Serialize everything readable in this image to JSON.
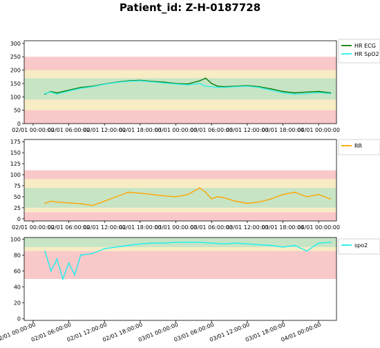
{
  "title": "Patient_id: Z-H-0187728",
  "colors": {
    "band_red": "#f9c8c8",
    "band_yellow": "#f7ecc4",
    "band_green": "#c7e4c4",
    "hr_ecg": "#0a7d0a",
    "hr_spo2": "#2ef2e8",
    "rr": "#ffa500",
    "spo2": "#19f0f0"
  },
  "chart_data": [
    {
      "type": "line",
      "xlim": [
        "02/01 00:00:00",
        "04/01 03:00:00"
      ],
      "ylim": [
        0,
        310
      ],
      "yticks": [
        0,
        50,
        100,
        150,
        200,
        250,
        300
      ],
      "xtick_labels": [
        "02/01 00:00:00",
        "02/01 06:00:00",
        "02/01 12:00:00",
        "02/01 18:00:00",
        "03/01 00:00:00",
        "03/01 06:00:00",
        "03/01 12:00:00",
        "03/01 18:00:00",
        "04/01 00:00:00"
      ],
      "bands": [
        {
          "from": 0,
          "to": 50,
          "level": "red"
        },
        {
          "from": 50,
          "to": 70,
          "level": "yellow"
        },
        {
          "from": 70,
          "to": 90,
          "level": "yellow"
        },
        {
          "from": 90,
          "to": 170,
          "level": "green"
        },
        {
          "from": 170,
          "to": 200,
          "level": "yellow"
        },
        {
          "from": 200,
          "to": 250,
          "level": "red"
        }
      ],
      "legend_position": "outside-right",
      "series": [
        {
          "name": "HR ECG",
          "color": "#0a7d0a",
          "x_hours": [
            2,
            3,
            4,
            6,
            8,
            10,
            12,
            14,
            16,
            18,
            20,
            22,
            24,
            26,
            28,
            29,
            30,
            31,
            32,
            34,
            36,
            38,
            40,
            42,
            44,
            46,
            48,
            50
          ],
          "y": [
            110,
            120,
            115,
            125,
            135,
            140,
            148,
            155,
            160,
            162,
            158,
            155,
            150,
            148,
            160,
            170,
            150,
            140,
            138,
            140,
            142,
            138,
            130,
            120,
            115,
            118,
            120,
            115
          ]
        },
        {
          "name": "HR SpO2",
          "color": "#2ef2e8",
          "x_hours": [
            2,
            3,
            4,
            6,
            8,
            10,
            12,
            14,
            16,
            18,
            20,
            22,
            24,
            26,
            28,
            29,
            30,
            31,
            32,
            34,
            36,
            38,
            40,
            42,
            44,
            46,
            48,
            50
          ],
          "y": [
            112,
            118,
            110,
            122,
            132,
            138,
            147,
            154,
            158,
            160,
            156,
            152,
            148,
            145,
            150,
            140,
            138,
            136,
            135,
            138,
            140,
            135,
            125,
            115,
            110,
            112,
            116,
            112
          ]
        }
      ]
    },
    {
      "type": "line",
      "xlim": [
        "02/01 00:00:00",
        "04/01 03:00:00"
      ],
      "ylim": [
        -5,
        180
      ],
      "yticks": [
        0,
        25,
        50,
        75,
        100,
        125,
        150,
        175
      ],
      "xtick_labels": [
        "02/01 00:00:00",
        "02/01 06:00:00",
        "02/01 12:00:00",
        "02/01 18:00:00",
        "03/01 00:00:00",
        "03/01 06:00:00",
        "03/01 12:00:00",
        "03/01 18:00:00",
        "04/01 00:00:00"
      ],
      "bands": [
        {
          "from": -5,
          "to": 15,
          "level": "red"
        },
        {
          "from": 15,
          "to": 25,
          "level": "yellow"
        },
        {
          "from": 25,
          "to": 70,
          "level": "green"
        },
        {
          "from": 70,
          "to": 90,
          "level": "yellow"
        },
        {
          "from": 90,
          "to": 110,
          "level": "red"
        }
      ],
      "legend_position": "outside-right",
      "series": [
        {
          "name": "RR",
          "color": "#ffa500",
          "x_hours": [
            2,
            3,
            4,
            6,
            8,
            10,
            12,
            14,
            16,
            18,
            20,
            22,
            24,
            26,
            28,
            29,
            30,
            31,
            32,
            34,
            36,
            38,
            40,
            42,
            44,
            46,
            48,
            50
          ],
          "y": [
            35,
            40,
            38,
            36,
            34,
            30,
            40,
            50,
            60,
            58,
            55,
            52,
            50,
            55,
            70,
            60,
            45,
            50,
            48,
            40,
            35,
            38,
            45,
            55,
            60,
            50,
            55,
            45
          ]
        }
      ]
    },
    {
      "type": "line",
      "xlim": [
        "02/01 00:00:00",
        "04/01 03:00:00"
      ],
      "ylim": [
        -2,
        102
      ],
      "yticks": [
        0,
        20,
        40,
        60,
        80,
        100
      ],
      "xtick_labels": [
        "02/01 00:00:00",
        "02/01 06:00:00",
        "02/01 12:00:00",
        "02/01 18:00:00",
        "03/01 00:00:00",
        "03/01 06:00:00",
        "03/01 12:00:00",
        "03/01 18:00:00",
        "04/01 00:00:00"
      ],
      "bands": [
        {
          "from": 50,
          "to": 85,
          "level": "red"
        },
        {
          "from": 85,
          "to": 90,
          "level": "yellow"
        },
        {
          "from": 90,
          "to": 102,
          "level": "green"
        }
      ],
      "legend_position": "outside-right",
      "series": [
        {
          "name": "spo2",
          "color": "#19f0f0",
          "x_hours": [
            2,
            3,
            4,
            5,
            6,
            7,
            8,
            10,
            12,
            14,
            16,
            18,
            20,
            22,
            24,
            26,
            28,
            30,
            32,
            34,
            36,
            38,
            40,
            42,
            44,
            46,
            48,
            50
          ],
          "y": [
            85,
            60,
            75,
            50,
            70,
            55,
            80,
            82,
            88,
            90,
            92,
            94,
            95,
            95,
            96,
            96,
            96,
            95,
            94,
            95,
            94,
            93,
            92,
            90,
            92,
            85,
            95,
            96
          ]
        }
      ]
    }
  ]
}
